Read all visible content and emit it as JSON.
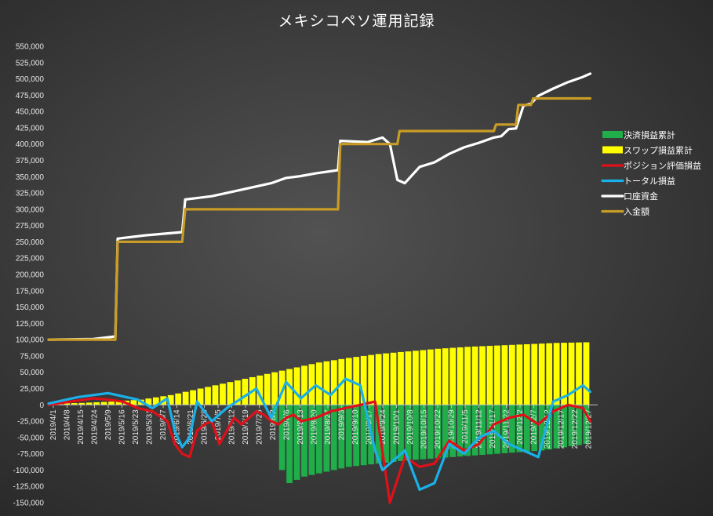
{
  "chart_data": {
    "type": "line",
    "title": "メキシコペソ運用記録",
    "xlabel": "",
    "ylabel": "",
    "ylim": [
      -150000,
      550000
    ],
    "y_ticks": [
      "550,000",
      "525,000",
      "500,000",
      "475,000",
      "450,000",
      "425,000",
      "400,000",
      "375,000",
      "350,000",
      "325,000",
      "300,000",
      "275,000",
      "250,000",
      "225,000",
      "200,000",
      "175,000",
      "150,000",
      "125,000",
      "100,000",
      "75,000",
      "50,000",
      "25,000",
      "0",
      "-25,000",
      "-50,000",
      "-75,000",
      "-100,000",
      "-125,000",
      "-150,000"
    ],
    "x_ticks": [
      "2019/4/1",
      "2019/4/8",
      "2019/4/15",
      "2019/4/24",
      "2019/5/9",
      "2019/5/16",
      "2019/5/23",
      "2019/5/31",
      "2019/6/7",
      "2019/6/14",
      "2019/6/21",
      "2019/6/28",
      "2019/7/5",
      "2019/7/12",
      "2019/7/19",
      "2019/7/26",
      "2019/8/2",
      "2019/8/6",
      "2019/8/13",
      "2019/8/20",
      "2019/8/27",
      "2019/9/3",
      "2019/9/10",
      "2019/9/17",
      "2019/9/24",
      "2019/10/1",
      "2019/10/8",
      "2019/10/15",
      "2019/10/22",
      "2019/10/29",
      "2019/11/5",
      "2019/11/12",
      "2019/11/17",
      "2019/11/22",
      "2019/12/2",
      "2019/12/7",
      "2019/12/12",
      "2019/12/17",
      "2019/12/22",
      "2019/12/27"
    ],
    "legend_position": "right",
    "grid": false,
    "series": [
      {
        "name": "決済損益累計",
        "style": "bar",
        "color": "#1fae4a",
        "x": [
          0,
          4,
          8,
          12,
          16,
          20,
          24,
          28,
          29,
          30,
          31,
          32,
          33,
          34,
          36,
          38,
          40,
          44,
          48,
          54,
          60,
          66,
          72
        ],
        "values": [
          0,
          0,
          0,
          0,
          0,
          0,
          0,
          0,
          10000,
          -30000,
          -100000,
          -120000,
          -115000,
          -110000,
          -105000,
          -100000,
          -95000,
          -90000,
          -85000,
          -80000,
          -75000,
          -70000,
          -60000
        ]
      },
      {
        "name": "スワップ損益累計",
        "style": "bar",
        "color": "#ffff00",
        "x": [
          0,
          4,
          8,
          12,
          16,
          20,
          24,
          28,
          32,
          36,
          40,
          44,
          48,
          52,
          56,
          60,
          64,
          68,
          72
        ],
        "values": [
          2000,
          3000,
          5000,
          8000,
          15000,
          25000,
          35000,
          45000,
          55000,
          65000,
          72000,
          78000,
          82000,
          86000,
          89000,
          91000,
          93000,
          95000,
          96000
        ]
      },
      {
        "name": "ポジション評価損益",
        "style": "line",
        "color": "#e0101a",
        "x": [
          0,
          3,
          6,
          8,
          10,
          12,
          14,
          16,
          17,
          18,
          19,
          20,
          21,
          22,
          23,
          24,
          25,
          26,
          28,
          29,
          30,
          31,
          32,
          33,
          34,
          36,
          38,
          40,
          42,
          44,
          46,
          48,
          50,
          52,
          54,
          56,
          58,
          60,
          62,
          64,
          66,
          68,
          70,
          72,
          73
        ],
        "values": [
          0,
          5000,
          10000,
          8000,
          5000,
          -5000,
          -10000,
          -25000,
          -60000,
          -75000,
          -80000,
          -40000,
          -30000,
          -25000,
          -60000,
          -40000,
          -20000,
          -30000,
          -10000,
          -15000,
          -25000,
          -30000,
          -20000,
          -15000,
          -25000,
          -20000,
          -10000,
          -5000,
          0,
          5000,
          -150000,
          -80000,
          -95000,
          -90000,
          -55000,
          -70000,
          -60000,
          -30000,
          -20000,
          -15000,
          -30000,
          -10000,
          0,
          -5000,
          -25000
        ]
      },
      {
        "name": "トータル損益",
        "style": "line",
        "color": "#1ab0e8",
        "x": [
          0,
          4,
          8,
          12,
          14,
          16,
          17,
          18,
          19,
          20,
          21,
          22,
          24,
          26,
          28,
          30,
          32,
          34,
          36,
          38,
          40,
          42,
          44,
          45,
          46,
          48,
          50,
          52,
          54,
          56,
          58,
          60,
          62,
          64,
          66,
          68,
          70,
          72,
          73
        ],
        "values": [
          2000,
          12000,
          18000,
          8000,
          -5000,
          10000,
          -40000,
          -65000,
          -50000,
          5000,
          -10000,
          -25000,
          -5000,
          10000,
          25000,
          -20000,
          35000,
          10000,
          30000,
          15000,
          40000,
          30000,
          -70000,
          -100000,
          -90000,
          -70000,
          -130000,
          -120000,
          -60000,
          -75000,
          -50000,
          -40000,
          -60000,
          -70000,
          -80000,
          5000,
          15000,
          30000,
          20000
        ]
      },
      {
        "name": "口座資金",
        "style": "line",
        "color": "#ffffff",
        "x": [
          0,
          6,
          9,
          9.3,
          13,
          18,
          18.4,
          22,
          26,
          30,
          32,
          34,
          36,
          39,
          39.3,
          43,
          45,
          46,
          47,
          48,
          50,
          52,
          54,
          56,
          58,
          60,
          61,
          62,
          63,
          64,
          65,
          66,
          68,
          70,
          72,
          73
        ],
        "values": [
          100000,
          101000,
          105000,
          255000,
          260000,
          265000,
          315000,
          320000,
          330000,
          340000,
          348000,
          351000,
          355000,
          360000,
          405000,
          403000,
          410000,
          400000,
          345000,
          340000,
          365000,
          372000,
          385000,
          395000,
          402000,
          410000,
          412000,
          423000,
          424000,
          459000,
          462000,
          474000,
          485000,
          495000,
          503000,
          508000
        ]
      },
      {
        "name": "入金額",
        "style": "line",
        "color": "#c89c25",
        "x": [
          0,
          9,
          9.3,
          18,
          18.4,
          39,
          39.3,
          47,
          47.3,
          60,
          60.3,
          61,
          61.3,
          63,
          63.3,
          65,
          65.3,
          73
        ],
        "values": [
          100000,
          100000,
          250000,
          250000,
          300000,
          300000,
          400000,
          400000,
          420000,
          420000,
          430000,
          430000,
          430000,
          430000,
          460000,
          460000,
          470000,
          470000
        ]
      }
    ]
  }
}
